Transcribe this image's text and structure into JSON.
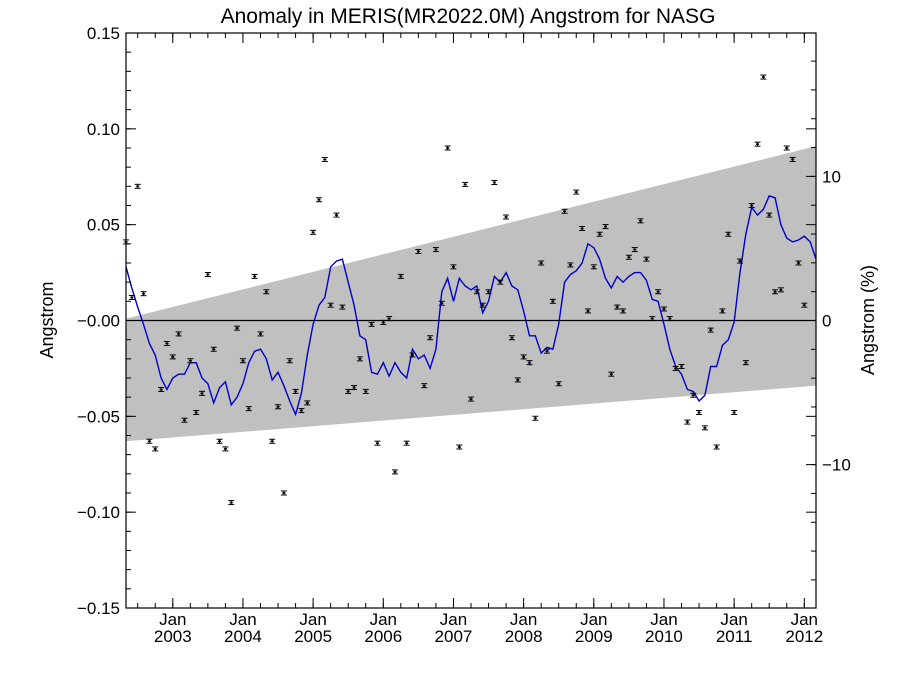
{
  "chart_data": {
    "type": "line",
    "title": "Anomaly in MERIS(MR2022.0M) Angstrom for NASG",
    "ylabel": "Angstrom",
    "ylabel_right": "Angstrom (%)",
    "xlim": [
      "2002-05",
      "2012-03"
    ],
    "ylim": [
      -0.15,
      0.15
    ],
    "y_ticks": [
      -0.15,
      -0.1,
      -0.05,
      0.0,
      0.05,
      0.1,
      0.15
    ],
    "y_tick_labels": [
      "−0.15",
      "−0.10",
      "−0.05",
      "−0.00",
      "0.05",
      "0.10",
      "0.15"
    ],
    "y_right_ticks": [
      -10,
      0,
      10
    ],
    "y_right_tick_labels": [
      "−10",
      "0",
      "10"
    ],
    "y_right_scale_percent_per_unit": 133,
    "x_ticks": [
      {
        "month": "Jan",
        "year": "2003",
        "date": "2003-01"
      },
      {
        "month": "Jan",
        "year": "2004",
        "date": "2004-01"
      },
      {
        "month": "Jan",
        "year": "2005",
        "date": "2005-01"
      },
      {
        "month": "Jan",
        "year": "2006",
        "date": "2006-01"
      },
      {
        "month": "Jan",
        "year": "2007",
        "date": "2007-01"
      },
      {
        "month": "Jan",
        "year": "2008",
        "date": "2008-01"
      },
      {
        "month": "Jan",
        "year": "2009",
        "date": "2009-01"
      },
      {
        "month": "Jan",
        "year": "2010",
        "date": "2010-01"
      },
      {
        "month": "Jan",
        "year": "2011",
        "date": "2011-01"
      },
      {
        "month": "Jan",
        "year": "2012",
        "date": "2012-01"
      }
    ],
    "grid": false,
    "legend": "none",
    "zero_line": true,
    "trend_band": {
      "color": "#c0c0c0",
      "start": {
        "date": "2002-05",
        "upper": 0.001,
        "lower": -0.063
      },
      "end": {
        "date": "2012-03",
        "upper": 0.091,
        "lower": -0.034
      }
    },
    "series": [
      {
        "kind": "smoothed_line",
        "color": "#0000cc",
        "points": [
          [
            "2002-05",
            0.028
          ],
          [
            "2002-06",
            0.017
          ],
          [
            "2002-07",
            0.007
          ],
          [
            "2002-08",
            -0.002
          ],
          [
            "2002-09",
            -0.012
          ],
          [
            "2002-10",
            -0.018
          ],
          [
            "2002-11",
            -0.03
          ],
          [
            "2002-12",
            -0.036
          ],
          [
            "2003-01",
            -0.03
          ],
          [
            "2003-02",
            -0.028
          ],
          [
            "2003-03",
            -0.028
          ],
          [
            "2003-04",
            -0.022
          ],
          [
            "2003-05",
            -0.022
          ],
          [
            "2003-06",
            -0.03
          ],
          [
            "2003-07",
            -0.033
          ],
          [
            "2003-08",
            -0.043
          ],
          [
            "2003-09",
            -0.035
          ],
          [
            "2003-10",
            -0.032
          ],
          [
            "2003-11",
            -0.044
          ],
          [
            "2003-12",
            -0.04
          ],
          [
            "2004-01",
            -0.033
          ],
          [
            "2004-02",
            -0.022
          ],
          [
            "2004-03",
            -0.016
          ],
          [
            "2004-04",
            -0.015
          ],
          [
            "2004-05",
            -0.02
          ],
          [
            "2004-06",
            -0.031
          ],
          [
            "2004-07",
            -0.027
          ],
          [
            "2004-08",
            -0.034
          ],
          [
            "2004-09",
            -0.042
          ],
          [
            "2004-10",
            -0.049
          ],
          [
            "2004-11",
            -0.038
          ],
          [
            "2004-12",
            -0.018
          ],
          [
            "2005-01",
            -0.002
          ],
          [
            "2005-02",
            0.008
          ],
          [
            "2005-03",
            0.012
          ],
          [
            "2005-04",
            0.028
          ],
          [
            "2005-05",
            0.031
          ],
          [
            "2005-06",
            0.032
          ],
          [
            "2005-07",
            0.02
          ],
          [
            "2005-08",
            0.008
          ],
          [
            "2005-09",
            -0.008
          ],
          [
            "2005-10",
            -0.01
          ],
          [
            "2005-11",
            -0.027
          ],
          [
            "2005-12",
            -0.028
          ],
          [
            "2006-01",
            -0.022
          ],
          [
            "2006-02",
            -0.029
          ],
          [
            "2006-03",
            -0.022
          ],
          [
            "2006-04",
            -0.027
          ],
          [
            "2006-05",
            -0.03
          ],
          [
            "2006-06",
            -0.015
          ],
          [
            "2006-07",
            -0.02
          ],
          [
            "2006-08",
            -0.018
          ],
          [
            "2006-09",
            -0.025
          ],
          [
            "2006-10",
            -0.015
          ],
          [
            "2006-11",
            0.015
          ],
          [
            "2006-12",
            0.022
          ],
          [
            "2007-01",
            0.01
          ],
          [
            "2007-02",
            0.022
          ],
          [
            "2007-03",
            0.018
          ],
          [
            "2007-04",
            0.016
          ],
          [
            "2007-05",
            0.018
          ],
          [
            "2007-06",
            0.004
          ],
          [
            "2007-07",
            0.01
          ],
          [
            "2007-08",
            0.023
          ],
          [
            "2007-09",
            0.02
          ],
          [
            "2007-10",
            0.025
          ],
          [
            "2007-11",
            0.018
          ],
          [
            "2007-12",
            0.016
          ],
          [
            "2008-01",
            0.005
          ],
          [
            "2008-02",
            -0.008
          ],
          [
            "2008-03",
            -0.008
          ],
          [
            "2008-04",
            -0.017
          ],
          [
            "2008-05",
            -0.014
          ],
          [
            "2008-06",
            -0.015
          ],
          [
            "2008-07",
            -0.002
          ],
          [
            "2008-08",
            0.02
          ],
          [
            "2008-09",
            0.024
          ],
          [
            "2008-10",
            0.026
          ],
          [
            "2008-11",
            0.03
          ],
          [
            "2008-12",
            0.04
          ],
          [
            "2009-01",
            0.038
          ],
          [
            "2009-02",
            0.032
          ],
          [
            "2009-03",
            0.022
          ],
          [
            "2009-04",
            0.017
          ],
          [
            "2009-05",
            0.023
          ],
          [
            "2009-06",
            0.02
          ],
          [
            "2009-07",
            0.023
          ],
          [
            "2009-08",
            0.025
          ],
          [
            "2009-09",
            0.025
          ],
          [
            "2009-10",
            0.021
          ],
          [
            "2009-11",
            0.011
          ],
          [
            "2009-12",
            0.01
          ],
          [
            "2010-01",
            -0.002
          ],
          [
            "2010-02",
            -0.015
          ],
          [
            "2010-03",
            -0.024
          ],
          [
            "2010-04",
            -0.028
          ],
          [
            "2010-05",
            -0.036
          ],
          [
            "2010-06",
            -0.037
          ],
          [
            "2010-07",
            -0.042
          ],
          [
            "2010-08",
            -0.039
          ],
          [
            "2010-09",
            -0.024
          ],
          [
            "2010-10",
            -0.024
          ],
          [
            "2010-11",
            -0.013
          ],
          [
            "2010-12",
            -0.01
          ],
          [
            "2011-01",
            -0.001
          ],
          [
            "2011-02",
            0.025
          ],
          [
            "2011-03",
            0.045
          ],
          [
            "2011-04",
            0.059
          ],
          [
            "2011-05",
            0.055
          ],
          [
            "2011-06",
            0.058
          ],
          [
            "2011-07",
            0.065
          ],
          [
            "2011-08",
            0.064
          ],
          [
            "2011-09",
            0.05
          ],
          [
            "2011-10",
            0.043
          ],
          [
            "2011-11",
            0.041
          ],
          [
            "2011-12",
            0.042
          ],
          [
            "2012-01",
            0.044
          ],
          [
            "2012-02",
            0.041
          ],
          [
            "2012-03",
            0.032
          ]
        ]
      },
      {
        "kind": "monthly_points_with_error_bars",
        "color": "#000000",
        "points": [
          [
            "2002-05",
            0.041
          ],
          [
            "2002-06",
            0.012
          ],
          [
            "2002-07",
            0.07
          ],
          [
            "2002-08",
            0.014
          ],
          [
            "2002-09",
            -0.063
          ],
          [
            "2002-10",
            -0.067
          ],
          [
            "2002-11",
            -0.036
          ],
          [
            "2002-12",
            -0.012
          ],
          [
            "2003-01",
            -0.019
          ],
          [
            "2003-02",
            -0.007
          ],
          [
            "2003-03",
            -0.052
          ],
          [
            "2003-04",
            -0.021
          ],
          [
            "2003-05",
            -0.048
          ],
          [
            "2003-06",
            -0.038
          ],
          [
            "2003-07",
            0.024
          ],
          [
            "2003-08",
            -0.015
          ],
          [
            "2003-09",
            -0.063
          ],
          [
            "2003-10",
            -0.067
          ],
          [
            "2003-11",
            -0.095
          ],
          [
            "2003-12",
            -0.004
          ],
          [
            "2004-01",
            -0.021
          ],
          [
            "2004-02",
            -0.046
          ],
          [
            "2004-03",
            0.023
          ],
          [
            "2004-04",
            -0.007
          ],
          [
            "2004-05",
            0.015
          ],
          [
            "2004-06",
            -0.063
          ],
          [
            "2004-07",
            -0.045
          ],
          [
            "2004-08",
            -0.09
          ],
          [
            "2004-09",
            -0.021
          ],
          [
            "2004-10",
            -0.037
          ],
          [
            "2004-11",
            -0.047
          ],
          [
            "2004-12",
            -0.043
          ],
          [
            "2005-01",
            0.046
          ],
          [
            "2005-02",
            0.063
          ],
          [
            "2005-03",
            0.084
          ],
          [
            "2005-04",
            0.008
          ],
          [
            "2005-05",
            0.055
          ],
          [
            "2005-06",
            0.007
          ],
          [
            "2005-07",
            -0.037
          ],
          [
            "2005-08",
            -0.035
          ],
          [
            "2005-09",
            -0.02
          ],
          [
            "2005-10",
            -0.037
          ],
          [
            "2005-11",
            -0.002
          ],
          [
            "2005-12",
            -0.064
          ],
          [
            "2006-01",
            -0.001
          ],
          [
            "2006-02",
            0.001
          ],
          [
            "2006-03",
            -0.079
          ],
          [
            "2006-04",
            0.023
          ],
          [
            "2006-05",
            -0.064
          ],
          [
            "2006-06",
            -0.018
          ],
          [
            "2006-07",
            0.036
          ],
          [
            "2006-08",
            -0.034
          ],
          [
            "2006-09",
            -0.009
          ],
          [
            "2006-10",
            0.037
          ],
          [
            "2006-11",
            0.009
          ],
          [
            "2006-12",
            0.09
          ],
          [
            "2007-01",
            0.028
          ],
          [
            "2007-02",
            -0.066
          ],
          [
            "2007-03",
            0.071
          ],
          [
            "2007-04",
            -0.041
          ],
          [
            "2007-05",
            0.015
          ],
          [
            "2007-06",
            0.008
          ],
          [
            "2007-07",
            0.015
          ],
          [
            "2007-08",
            0.072
          ],
          [
            "2007-09",
            0.02
          ],
          [
            "2007-10",
            0.054
          ],
          [
            "2007-11",
            -0.009
          ],
          [
            "2007-12",
            -0.031
          ],
          [
            "2008-01",
            -0.019
          ],
          [
            "2008-02",
            -0.022
          ],
          [
            "2008-03",
            -0.051
          ],
          [
            "2008-04",
            0.03
          ],
          [
            "2008-05",
            -0.016
          ],
          [
            "2008-06",
            0.01
          ],
          [
            "2008-07",
            -0.033
          ],
          [
            "2008-08",
            0.057
          ],
          [
            "2008-09",
            0.029
          ],
          [
            "2008-10",
            0.067
          ],
          [
            "2008-11",
            0.048
          ],
          [
            "2008-12",
            0.005
          ],
          [
            "2009-01",
            0.028
          ],
          [
            "2009-02",
            0.045
          ],
          [
            "2009-03",
            0.049
          ],
          [
            "2009-04",
            -0.028
          ],
          [
            "2009-05",
            0.007
          ],
          [
            "2009-06",
            0.005
          ],
          [
            "2009-07",
            0.033
          ],
          [
            "2009-08",
            0.037
          ],
          [
            "2009-09",
            0.052
          ],
          [
            "2009-10",
            0.032
          ],
          [
            "2009-11",
            0.001
          ],
          [
            "2009-12",
            0.015
          ],
          [
            "2010-01",
            0.006
          ],
          [
            "2010-02",
            0.001
          ],
          [
            "2010-03",
            -0.025
          ],
          [
            "2010-04",
            -0.024
          ],
          [
            "2010-05",
            -0.053
          ],
          [
            "2010-06",
            -0.039
          ],
          [
            "2010-07",
            -0.048
          ],
          [
            "2010-08",
            -0.056
          ],
          [
            "2010-09",
            -0.005
          ],
          [
            "2010-10",
            -0.066
          ],
          [
            "2010-11",
            0.005
          ],
          [
            "2010-12",
            0.045
          ],
          [
            "2011-01",
            -0.048
          ],
          [
            "2011-02",
            0.031
          ],
          [
            "2011-03",
            -0.022
          ],
          [
            "2011-04",
            0.06
          ],
          [
            "2011-05",
            0.092
          ],
          [
            "2011-06",
            0.127
          ],
          [
            "2011-07",
            0.055
          ],
          [
            "2011-08",
            0.015
          ],
          [
            "2011-09",
            0.016
          ],
          [
            "2011-10",
            0.09
          ],
          [
            "2011-11",
            0.084
          ],
          [
            "2011-12",
            0.03
          ],
          [
            "2012-01",
            0.008
          ]
        ]
      }
    ]
  }
}
